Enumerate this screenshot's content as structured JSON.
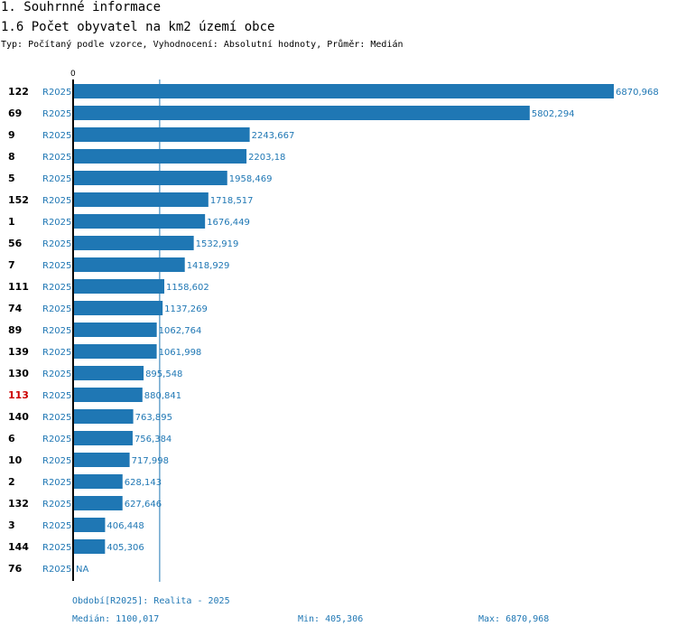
{
  "header": {
    "title": "1. Souhrnné informace",
    "subtitle": "1.6 Počet obyvatel na km2 území obce",
    "meta": "Typ: Počítaný podle vzorce, Vyhodnocení: Absolutní hodnoty, Průměr: Medián"
  },
  "chart_data": {
    "type": "bar",
    "orientation": "horizontal",
    "title": "1.6 Počet obyvatel na km2 území obce",
    "axis_zero_label": "0",
    "xlim": [
      0,
      6870.968
    ],
    "median": 1100.017,
    "series_color": "#1f77b4",
    "highlight_color": "#cc0000",
    "rows": [
      {
        "id": "122",
        "period": "R2025",
        "value": 6870.968,
        "label": "6870,968"
      },
      {
        "id": "69",
        "period": "R2025",
        "value": 5802.294,
        "label": "5802,294"
      },
      {
        "id": "9",
        "period": "R2025",
        "value": 2243.667,
        "label": "2243,667"
      },
      {
        "id": "8",
        "period": "R2025",
        "value": 2203.18,
        "label": "2203,18"
      },
      {
        "id": "5",
        "period": "R2025",
        "value": 1958.469,
        "label": "1958,469"
      },
      {
        "id": "152",
        "period": "R2025",
        "value": 1718.517,
        "label": "1718,517"
      },
      {
        "id": "1",
        "period": "R2025",
        "value": 1676.449,
        "label": "1676,449"
      },
      {
        "id": "56",
        "period": "R2025",
        "value": 1532.919,
        "label": "1532,919"
      },
      {
        "id": "7",
        "period": "R2025",
        "value": 1418.929,
        "label": "1418,929"
      },
      {
        "id": "111",
        "period": "R2025",
        "value": 1158.602,
        "label": "1158,602"
      },
      {
        "id": "74",
        "period": "R2025",
        "value": 1137.269,
        "label": "1137,269"
      },
      {
        "id": "89",
        "period": "R2025",
        "value": 1062.764,
        "label": "1062,764"
      },
      {
        "id": "139",
        "period": "R2025",
        "value": 1061.998,
        "label": "1061,998"
      },
      {
        "id": "130",
        "period": "R2025",
        "value": 895.548,
        "label": "895,548"
      },
      {
        "id": "113",
        "period": "R2025",
        "value": 880.841,
        "label": "880,841",
        "highlight": true
      },
      {
        "id": "140",
        "period": "R2025",
        "value": 763.895,
        "label": "763,895"
      },
      {
        "id": "6",
        "period": "R2025",
        "value": 756.384,
        "label": "756,384"
      },
      {
        "id": "10",
        "period": "R2025",
        "value": 717.998,
        "label": "717,998"
      },
      {
        "id": "2",
        "period": "R2025",
        "value": 628.143,
        "label": "628,143"
      },
      {
        "id": "132",
        "period": "R2025",
        "value": 627.646,
        "label": "627,646"
      },
      {
        "id": "3",
        "period": "R2025",
        "value": 406.448,
        "label": "406,448"
      },
      {
        "id": "144",
        "period": "R2025",
        "value": 405.306,
        "label": "405,306"
      },
      {
        "id": "76",
        "period": "R2025",
        "value": null,
        "label": "NA"
      }
    ]
  },
  "footer": {
    "period": "Období[R2025]: Realita - 2025",
    "median": "Medián: 1100,017",
    "min": "Min: 405,306",
    "max": "Max: 6870,968"
  }
}
